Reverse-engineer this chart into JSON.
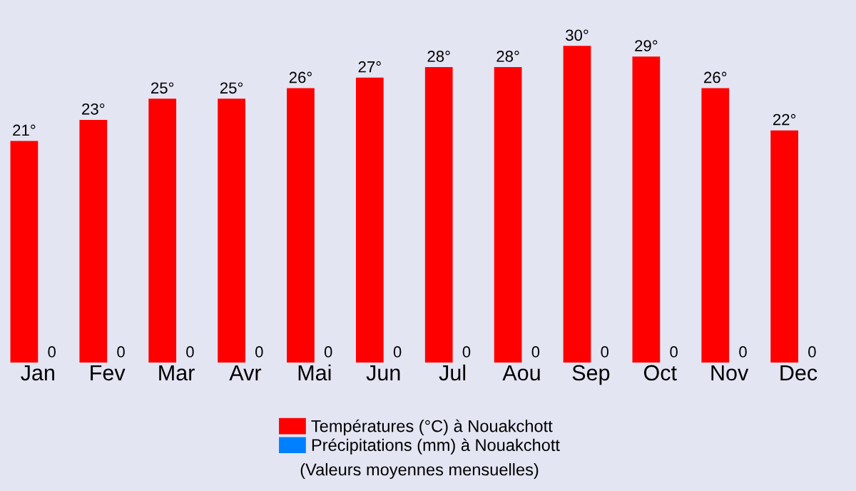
{
  "chart_data": {
    "type": "bar",
    "categories": [
      "Jan",
      "Fev",
      "Mar",
      "Avr",
      "Mai",
      "Jun",
      "Jul",
      "Aou",
      "Sep",
      "Oct",
      "Nov",
      "Dec"
    ],
    "series": [
      {
        "name": "Températures (°C) à Nouakchott",
        "color": "#ff0000",
        "values": [
          21,
          23,
          25,
          25,
          26,
          27,
          28,
          28,
          30,
          29,
          26,
          22
        ],
        "value_labels": [
          "21°",
          "23°",
          "25°",
          "25°",
          "26°",
          "27°",
          "28°",
          "28°",
          "30°",
          "29°",
          "26°",
          "22°"
        ]
      },
      {
        "name": "Précipitations (mm) à Nouakchott",
        "color": "#0080ff",
        "values": [
          0,
          0,
          0,
          0,
          0,
          0,
          0,
          0,
          0,
          0,
          0,
          0
        ],
        "value_labels": [
          "0",
          "0",
          "0",
          "0",
          "0",
          "0",
          "0",
          "0",
          "0",
          "0",
          "0",
          "0"
        ]
      }
    ],
    "annotations": [
      "(Valeurs moyennes mensuelles)"
    ],
    "legend": "bottom",
    "grid": false
  }
}
